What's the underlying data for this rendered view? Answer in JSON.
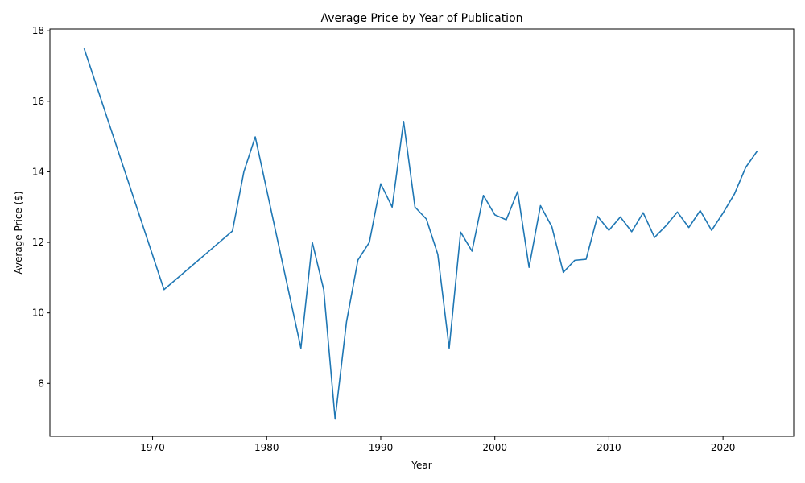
{
  "chart_data": {
    "type": "line",
    "title": "Average Price by Year of Publication",
    "xlabel": "Year",
    "ylabel": "Average Price ($)",
    "xlim": [
      1961,
      2026.2
    ],
    "ylim": [
      6.5,
      18.05
    ],
    "xticks": [
      1970,
      1980,
      1990,
      2000,
      2010,
      2020
    ],
    "yticks": [
      8,
      10,
      12,
      14,
      16,
      18
    ],
    "grid": false,
    "legend": "none",
    "line_color": "#1f77b4",
    "series": [
      {
        "x": [
          1964,
          1971,
          1977,
          1978,
          1979,
          1983,
          1984,
          1985,
          1986,
          1987,
          1988,
          1989,
          1990,
          1991,
          1992,
          1993,
          1994,
          1995,
          1996,
          1997,
          1998,
          1999,
          2000,
          2001,
          2002,
          2003,
          2004,
          2005,
          2006,
          2007,
          2008,
          2009,
          2010,
          2011,
          2012,
          2013,
          2014,
          2015,
          2016,
          2017,
          2018,
          2019,
          2020,
          2021,
          2022,
          2023
        ],
        "values": [
          17.5,
          10.66,
          12.32,
          14.0,
          14.99,
          9.0,
          12.0,
          10.66,
          6.99,
          9.75,
          11.5,
          12.0,
          13.66,
          13.0,
          15.43,
          13.0,
          12.66,
          11.66,
          9.0,
          12.29,
          11.75,
          13.33,
          12.78,
          12.64,
          13.44,
          11.29,
          13.04,
          12.44,
          11.15,
          11.49,
          11.52,
          12.74,
          12.34,
          12.72,
          12.3,
          12.84,
          12.14,
          12.47,
          12.86,
          12.42,
          12.9,
          12.34,
          12.83,
          13.37,
          14.13,
          14.59
        ]
      }
    ]
  }
}
